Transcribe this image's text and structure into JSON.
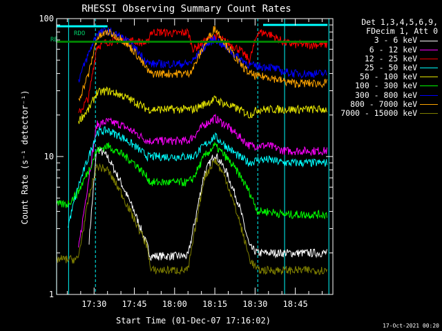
{
  "chart_data": {
    "type": "line",
    "title": "RHESSI Observing Summary Count Rates",
    "xlabel": "Start Time (01-Dec-07 17:16:02)",
    "ylabel": "Count Rate (s⁻¹ detector⁻¹)",
    "x_range": [
      "17:16:02",
      "18:59:00"
    ],
    "x_ticks": [
      "17:30",
      "17:45",
      "18:00",
      "18:15",
      "18:30",
      "18:45"
    ],
    "y_scale": "log",
    "ylim": [
      1,
      100
    ],
    "y_ticks": [
      "1",
      "10",
      "100"
    ],
    "legend_header": [
      "Det 1,3,4,5,6,9,",
      "FDecim 1, Att 0"
    ],
    "legend_position": "right",
    "annotations": [
      "RDO",
      "RE"
    ],
    "night_lines": [
      "17:16:00",
      "17:20:30",
      "18:41:00",
      "18:57:30"
    ],
    "dashed_lines": [
      "17:30:30",
      "18:31:00"
    ],
    "time_x": [
      "17:16",
      "17:20",
      "17:24",
      "17:28",
      "17:31",
      "17:35",
      "17:40",
      "17:45",
      "17:50",
      "17:51",
      "17:55",
      "18:00",
      "18:05",
      "18:07",
      "18:11",
      "18:15",
      "18:19",
      "18:24",
      "18:28",
      "18:31",
      "18:35",
      "18:41",
      "18:45",
      "18:50",
      "18:57"
    ],
    "series": [
      {
        "name": "3 - 6 keV",
        "color": "#ffffff",
        "values": [
          null,
          null,
          null,
          2.3,
          11.5,
          10,
          6.5,
          4,
          2.2,
          1.9,
          1.9,
          1.9,
          1.9,
          3,
          7.5,
          10.5,
          8,
          4.5,
          2.2,
          2,
          2,
          2,
          2,
          2,
          2
        ]
      },
      {
        "name": "6 - 12 keV",
        "color": "#ff00ff",
        "values": [
          null,
          null,
          2,
          7,
          17,
          18,
          17,
          15,
          13,
          13,
          13,
          13,
          13,
          14,
          17,
          19,
          17,
          14,
          12,
          12,
          12,
          11,
          11,
          11,
          11
        ]
      },
      {
        "name": "12 - 25 keV",
        "color": "#ff0000",
        "values": [
          null,
          null,
          20,
          27,
          63,
          68,
          70,
          69,
          66,
          80,
          80,
          78,
          80,
          60,
          68,
          75,
          68,
          60,
          50,
          80,
          78,
          67,
          65,
          65,
          65
        ]
      },
      {
        "name": "25 - 50 keV",
        "color": "#00ffff",
        "values": [
          null,
          3,
          6,
          10,
          15,
          15.5,
          14,
          12,
          10,
          10,
          10,
          10,
          10,
          10,
          12,
          14,
          12,
          10,
          9,
          9.5,
          9.5,
          9,
          9,
          9,
          9
        ]
      },
      {
        "name": "50 - 100 keV",
        "color": "#e6e600",
        "values": [
          null,
          null,
          18,
          22,
          29,
          30,
          28,
          25,
          22,
          22,
          22,
          22,
          22,
          22,
          24,
          26,
          24,
          22,
          20,
          22,
          22,
          22,
          22,
          22,
          22
        ]
      },
      {
        "name": "100 - 300 keV",
        "color": "#00ff00",
        "values": [
          4.5,
          4.5,
          5.5,
          8,
          11,
          12,
          10.5,
          9,
          7,
          6.5,
          6.5,
          6.5,
          6.5,
          7,
          10,
          12,
          10,
          7.5,
          5.5,
          4,
          4,
          3.8,
          3.8,
          3.8,
          3.8
        ]
      },
      {
        "name": "300 - 800 keV",
        "color": "#0000ff",
        "values": [
          null,
          null,
          35,
          56,
          78,
          82,
          74,
          62,
          48,
          47,
          47,
          47,
          47,
          50,
          62,
          72,
          62,
          52,
          46,
          45,
          45,
          41,
          40,
          40,
          40
        ]
      },
      {
        "name": "800 - 7000 keV",
        "color": "#ffa500",
        "values": [
          null,
          null,
          25,
          40,
          72,
          80,
          72,
          58,
          42,
          40,
          40,
          40,
          40,
          44,
          64,
          86,
          66,
          48,
          40,
          38,
          38,
          35,
          34,
          34,
          34
        ]
      },
      {
        "name": "7000 - 15000 keV",
        "color": "#808000",
        "values": [
          1.8,
          1.8,
          1.8,
          5,
          8.5,
          8,
          5.5,
          3.5,
          2.2,
          1.5,
          1.5,
          1.5,
          1.5,
          2.5,
          7,
          9.5,
          7,
          3.5,
          1.8,
          1.5,
          1.5,
          1.5,
          1.5,
          1.5,
          1.5
        ]
      }
    ],
    "overlays": [
      {
        "label": "RDO",
        "color": "#00ffff",
        "segments": [
          [
            "17:16",
            "17:35",
            88
          ],
          [
            "18:33",
            "18:57",
            90
          ]
        ]
      },
      {
        "label": "RE",
        "color": "#008000",
        "segments": [
          [
            "17:16",
            "18:57",
            68
          ]
        ]
      }
    ]
  },
  "footer": {
    "timestamp": "17-Oct-2021 00:20"
  }
}
